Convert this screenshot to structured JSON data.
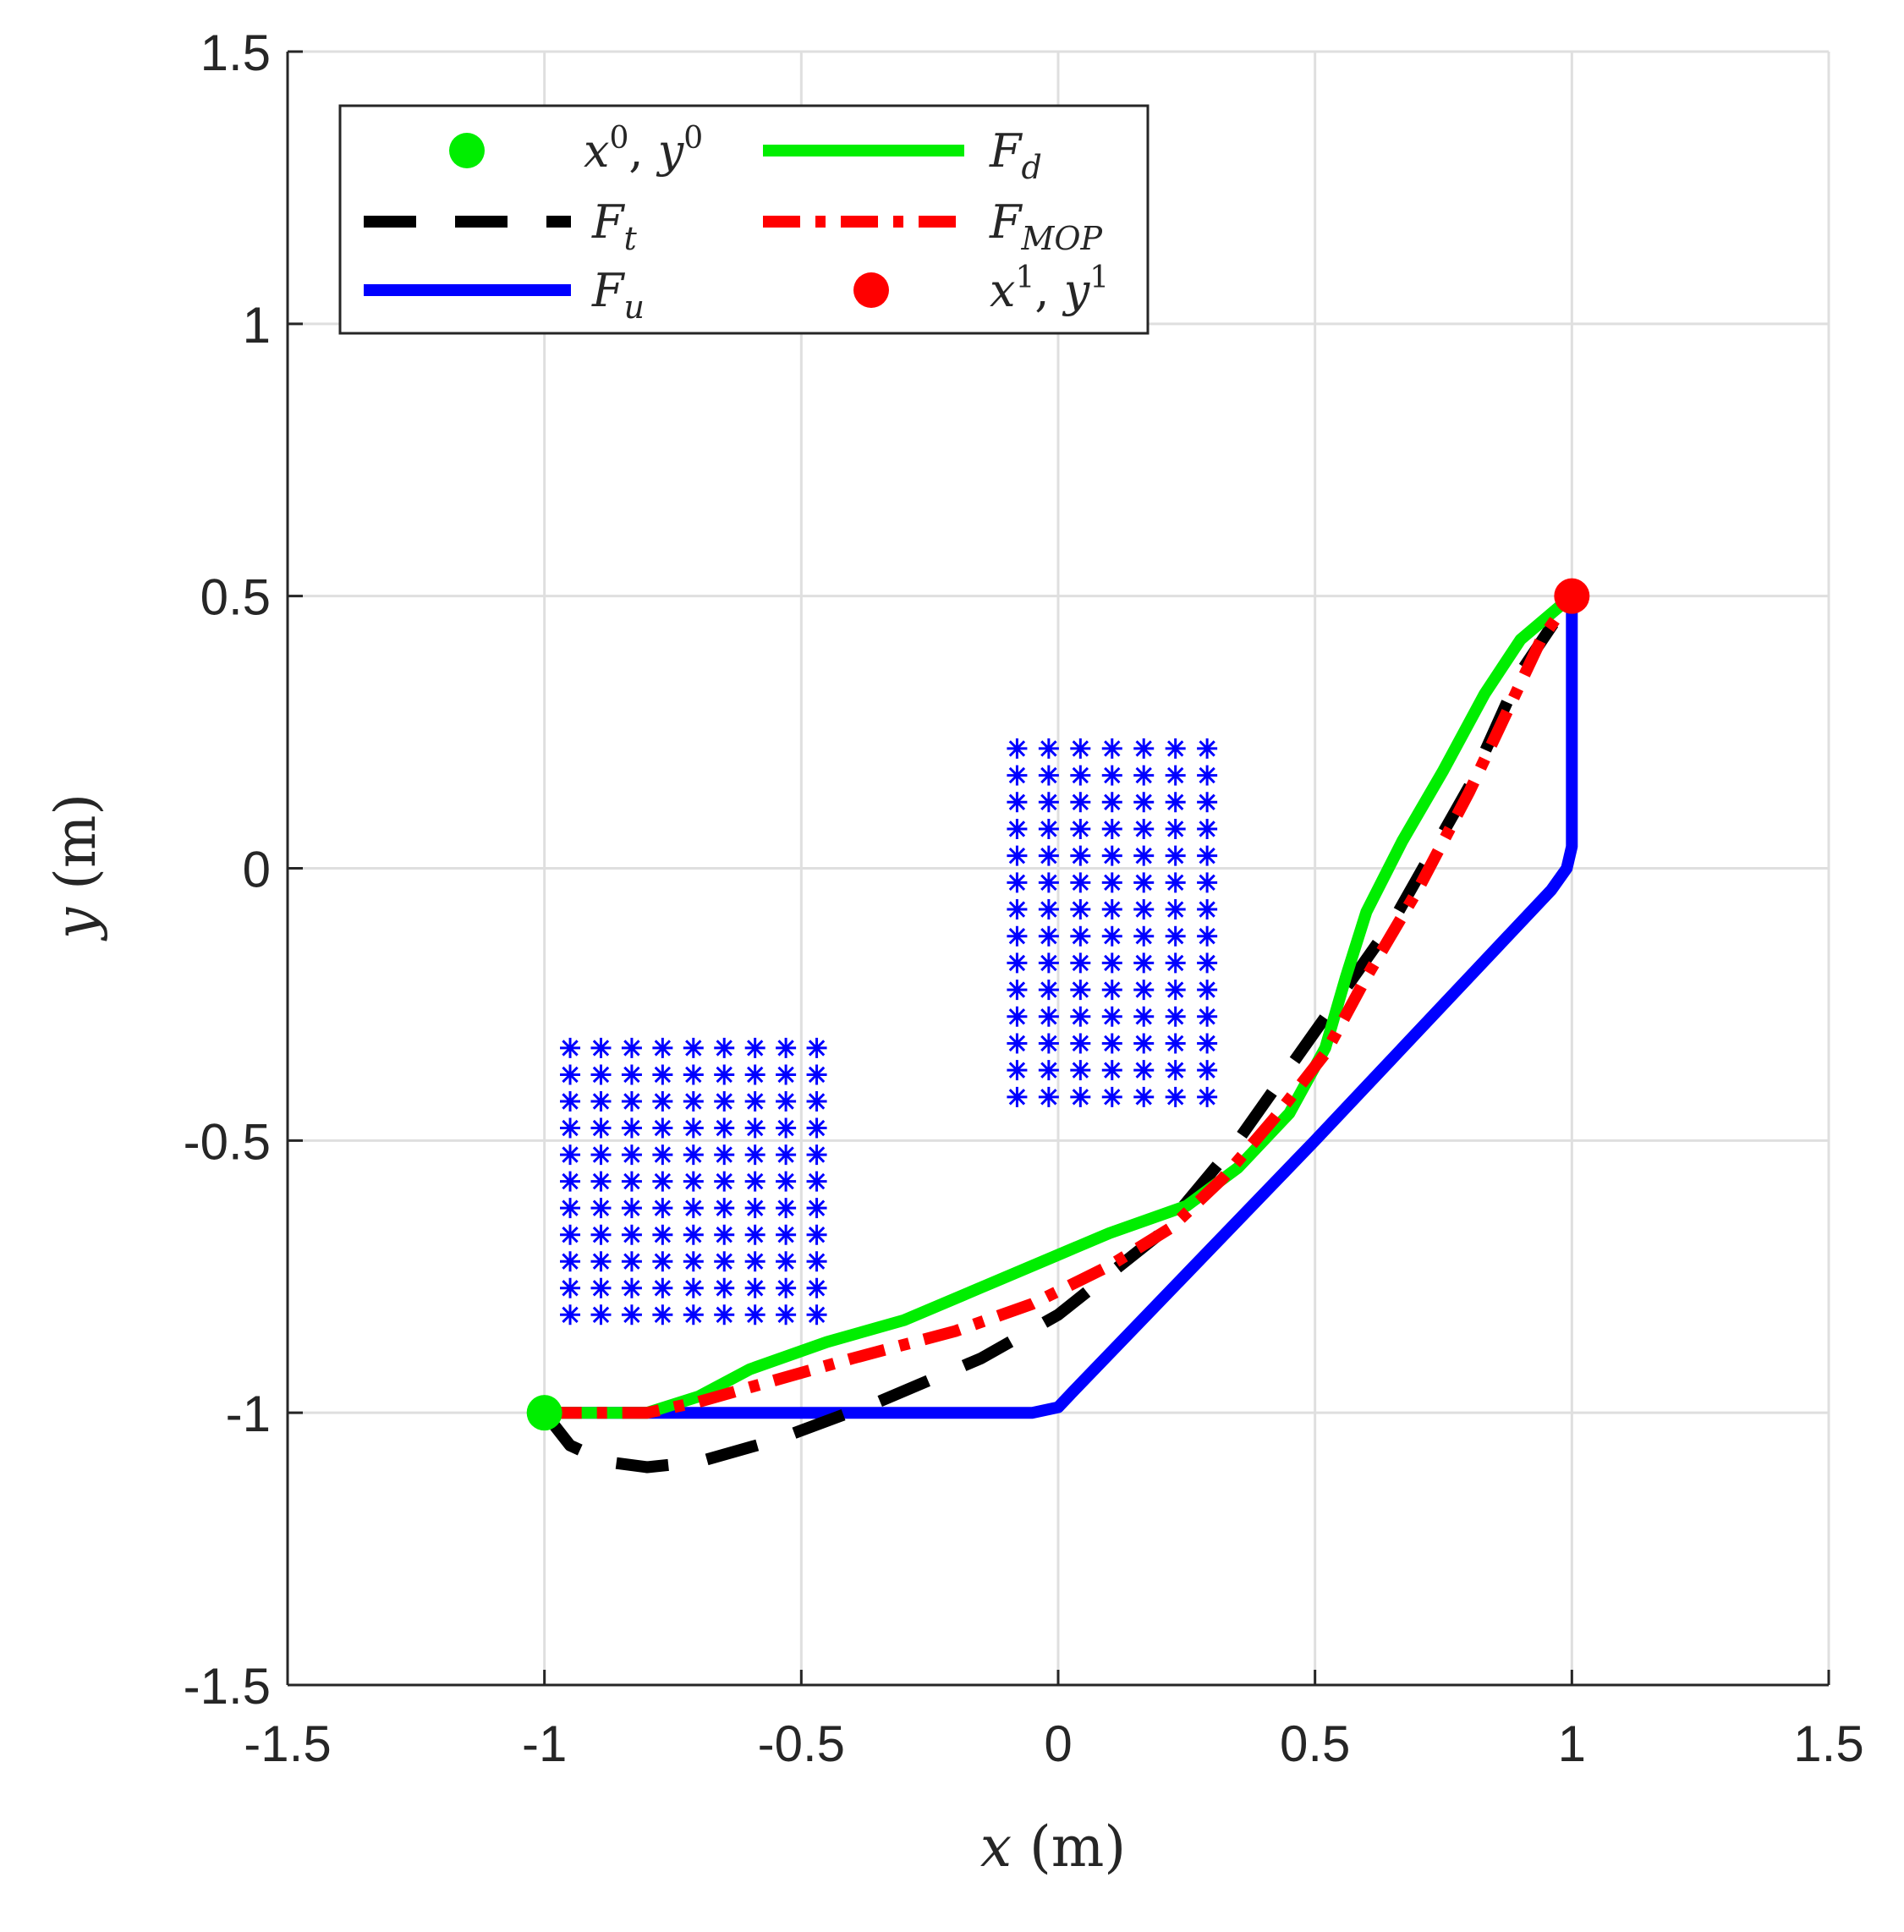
{
  "chart_data": {
    "type": "line",
    "xlabel": {
      "var": "x",
      "unit": " (m)"
    },
    "ylabel": {
      "var": "y",
      "unit": " (m)"
    },
    "xlim": [
      -1.5,
      1.5
    ],
    "ylim": [
      -1.5,
      1.5
    ],
    "xticks": [
      -1.5,
      -1,
      -0.5,
      0,
      0.5,
      1,
      1.5
    ],
    "yticks": [
      -1.5,
      -1,
      -0.5,
      0,
      0.5,
      1,
      1.5
    ],
    "xtick_labels": [
      "-1.5",
      "-1",
      "-0.5",
      "0",
      "0.5",
      "1",
      "1.5"
    ],
    "ytick_labels": [
      "-1.5",
      "-1",
      "-0.5",
      "0",
      "0.5",
      "1",
      "1.5"
    ],
    "grid": true,
    "legend_position": "top-left",
    "legend_layout": "2 columns",
    "colors": {
      "start": "#00ee00",
      "Fd": "#00ee00",
      "Ft": "#000000",
      "FMOP": "#ff0000",
      "Fu": "#0000ff",
      "goal": "#ff0000",
      "obstacle": "#0000ff"
    },
    "legend": [
      {
        "key": "start",
        "marker": "dot",
        "color": "#00ee00",
        "label": {
          "a": "x",
          "a_sup": "0",
          "sep": ", ",
          "b": "y",
          "b_sup": "0"
        }
      },
      {
        "key": "Fd",
        "marker": "solid",
        "color": "#00ee00",
        "label": {
          "base": "F",
          "sub": "d"
        }
      },
      {
        "key": "Ft",
        "marker": "dashed",
        "color": "#000000",
        "label": {
          "base": "F",
          "sub": "t"
        }
      },
      {
        "key": "FMOP",
        "marker": "dashdot",
        "color": "#ff0000",
        "label": {
          "base": "F",
          "sub": "MOP"
        }
      },
      {
        "key": "Fu",
        "marker": "solid",
        "color": "#0000ff",
        "label": {
          "base": "F",
          "sub": "u"
        }
      },
      {
        "key": "goal",
        "marker": "dot",
        "color": "#ff0000",
        "label": {
          "a": "x",
          "a_sup": "1",
          "sep": ", ",
          "b": "y",
          "b_sup": "1"
        }
      }
    ],
    "start_point": {
      "x": -1,
      "y": -1
    },
    "goal_point": {
      "x": 1,
      "y": 0.5
    },
    "obstacles": [
      {
        "x_min": -0.95,
        "x_max": -0.47,
        "y_min": -0.82,
        "y_max": -0.33,
        "nx": 9,
        "ny": 11
      },
      {
        "x_min": -0.08,
        "x_max": 0.29,
        "y_min": -0.42,
        "y_max": 0.22,
        "nx": 7,
        "ny": 14
      }
    ],
    "series": [
      {
        "key": "Fu",
        "style": "solid",
        "color": "#0000ff",
        "points": [
          [
            -1,
            -1
          ],
          [
            -0.05,
            -1
          ],
          [
            0,
            -0.99
          ],
          [
            0.03,
            -0.96
          ],
          [
            0.5,
            -0.5
          ],
          [
            0.96,
            -0.04
          ],
          [
            0.99,
            0
          ],
          [
            1,
            0.04
          ],
          [
            1,
            0.5
          ]
        ]
      },
      {
        "key": "Ft",
        "style": "dashed",
        "color": "#000000",
        "points": [
          [
            -1,
            -1
          ],
          [
            -0.95,
            -1.06
          ],
          [
            -0.88,
            -1.09
          ],
          [
            -0.8,
            -1.1
          ],
          [
            -0.7,
            -1.09
          ],
          [
            -0.55,
            -1.05
          ],
          [
            -0.35,
            -0.98
          ],
          [
            -0.15,
            -0.9
          ],
          [
            0,
            -0.82
          ],
          [
            0.2,
            -0.67
          ],
          [
            0.35,
            -0.5
          ],
          [
            0.5,
            -0.3
          ],
          [
            0.65,
            -0.1
          ],
          [
            0.8,
            0.15
          ],
          [
            0.9,
            0.36
          ],
          [
            1,
            0.5
          ]
        ]
      },
      {
        "key": "Fd",
        "style": "solid",
        "color": "#00ee00",
        "points": [
          [
            -1,
            -1
          ],
          [
            -0.8,
            -1
          ],
          [
            -0.7,
            -0.97
          ],
          [
            -0.6,
            -0.92
          ],
          [
            -0.45,
            -0.87
          ],
          [
            -0.3,
            -0.83
          ],
          [
            -0.15,
            -0.77
          ],
          [
            0,
            -0.71
          ],
          [
            0.1,
            -0.67
          ],
          [
            0.25,
            -0.62
          ],
          [
            0.35,
            -0.55
          ],
          [
            0.45,
            -0.45
          ],
          [
            0.52,
            -0.33
          ],
          [
            0.56,
            -0.2
          ],
          [
            0.6,
            -0.08
          ],
          [
            0.67,
            0.05
          ],
          [
            0.75,
            0.18
          ],
          [
            0.83,
            0.32
          ],
          [
            0.9,
            0.42
          ],
          [
            1,
            0.5
          ]
        ]
      },
      {
        "key": "FMOP",
        "style": "dashdot",
        "color": "#ff0000",
        "points": [
          [
            -1,
            -1
          ],
          [
            -0.8,
            -1
          ],
          [
            -0.7,
            -0.98
          ],
          [
            -0.55,
            -0.94
          ],
          [
            -0.4,
            -0.9
          ],
          [
            -0.2,
            -0.85
          ],
          [
            -0.05,
            -0.8
          ],
          [
            0.1,
            -0.73
          ],
          [
            0.22,
            -0.66
          ],
          [
            0.32,
            -0.57
          ],
          [
            0.42,
            -0.46
          ],
          [
            0.52,
            -0.34
          ],
          [
            0.6,
            -0.2
          ],
          [
            0.7,
            -0.04
          ],
          [
            0.8,
            0.14
          ],
          [
            0.88,
            0.3
          ],
          [
            0.94,
            0.42
          ],
          [
            1,
            0.5
          ]
        ]
      }
    ]
  }
}
